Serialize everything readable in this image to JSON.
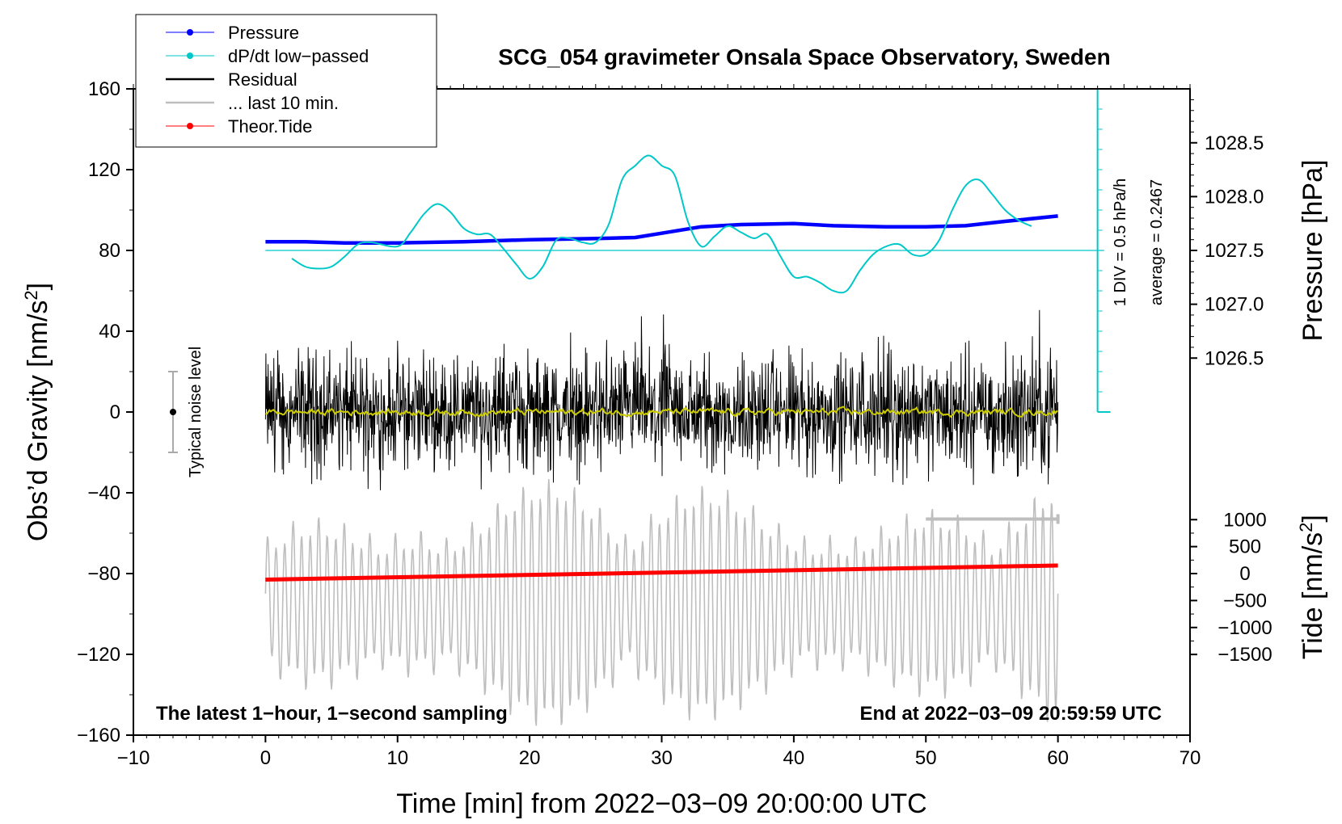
{
  "chart_data": {
    "type": "line",
    "title": "SCG_054 gravimeter Onsala Space Observatory, Sweden",
    "xlabel": "Time [min] from 2022−03−09 20:00:00 UTC",
    "ylabel_left": "Obs’d Gravity [nm/s²]",
    "ylabel_left_parts": [
      "Obs’d Gravity [nm/s",
      "2",
      "]"
    ],
    "ylabel_right_pressure": "Pressure [hPa]",
    "ylabel_right_tide": "Tide [nm/s²]",
    "ylabel_right_tide_parts": [
      "Tide [nm/s",
      "2",
      "]"
    ],
    "xlim": [
      -10,
      70
    ],
    "ylim": [
      -160,
      160
    ],
    "x_ticks": [
      -10,
      0,
      10,
      20,
      30,
      40,
      50,
      60,
      70
    ],
    "x_tick_labels": [
      "−10",
      "0",
      "10",
      "20",
      "30",
      "40",
      "50",
      "60",
      "70"
    ],
    "y_ticks": [
      -160,
      -120,
      -80,
      -40,
      0,
      40,
      80,
      120,
      160
    ],
    "y_tick_labels": [
      "−160",
      "−120",
      "−80",
      "−40",
      "0",
      "40",
      "80",
      "120",
      "160"
    ],
    "pressure_axis": {
      "ticks": [
        1026.5,
        1027.0,
        1027.5,
        1028.0,
        1028.5
      ],
      "tick_labels": [
        "1026.5",
        "1027.0",
        "1027.5",
        "1028.0",
        "1028.5"
      ],
      "ref_value": 1027.5,
      "ref_gravity": 80,
      "gravity_per_hpa": 53.3
    },
    "tide_axis": {
      "ticks": [
        -1500,
        -1000,
        -500,
        0,
        500,
        1000
      ],
      "tick_labels": [
        "−1500",
        "−1000",
        "−500",
        "0",
        "500",
        "1000"
      ],
      "ref_value": 0,
      "ref_gravity": -80,
      "gravity_per_nms2": 0.0267
    },
    "legend": [
      {
        "label": "Pressure",
        "color": "#0000ff",
        "marker": true
      },
      {
        "label": "dP/dt low−passed",
        "color": "#00c8c8",
        "marker": true
      },
      {
        "label": "Residual",
        "color": "#000000",
        "marker": false
      },
      {
        "label": "... last 10 min.",
        "color": "#bebebe",
        "marker": false
      },
      {
        "label": "Theor.Tide",
        "color": "#ff0000",
        "marker": true
      }
    ],
    "series": [
      {
        "name": "Pressure",
        "color": "#0000ff",
        "x": [
          0,
          3,
          6,
          10,
          15,
          20,
          25,
          28,
          30,
          33,
          36,
          40,
          43,
          47,
          50,
          53,
          56,
          60
        ],
        "y": [
          1027.58,
          1027.58,
          1027.57,
          1027.57,
          1027.58,
          1027.6,
          1027.61,
          1027.62,
          1027.66,
          1027.72,
          1027.74,
          1027.75,
          1027.73,
          1027.72,
          1027.72,
          1027.73,
          1027.77,
          1027.82
        ]
      },
      {
        "name": "dP/dt low-passed",
        "color": "#00c8c8",
        "x": [
          2,
          3,
          4,
          5,
          6,
          7,
          8,
          10,
          11,
          12,
          13,
          14,
          15,
          16,
          17,
          18,
          19,
          20,
          21,
          22,
          23,
          24,
          25,
          26,
          27,
          28,
          29,
          30,
          31,
          32,
          33,
          34,
          35,
          36,
          37,
          38,
          39,
          40,
          41,
          42,
          43,
          44,
          45,
          46,
          47,
          48,
          49,
          50,
          51,
          52,
          53,
          54,
          55,
          56,
          57,
          58
        ],
        "y": [
          76,
          72,
          71,
          72,
          77,
          83,
          84,
          82,
          89,
          98,
          103,
          99,
          91,
          88,
          88,
          81,
          73,
          66,
          72,
          85,
          86,
          84,
          84,
          93,
          115,
          122,
          127,
          122,
          117,
          94,
          82,
          87,
          92,
          89,
          86,
          88,
          77,
          67,
          67,
          64,
          60,
          60,
          70,
          78,
          82,
          83,
          78,
          78,
          85,
          100,
          112,
          115,
          108,
          100,
          95,
          92
        ]
      },
      {
        "name": "Residual",
        "color": "#000000",
        "x_start": 0,
        "x_end": 60,
        "envelope": 55
      },
      {
        "name": "Residual smoothed",
        "color": "#cccc00",
        "x_start": 0,
        "x_end": 60,
        "center": 0
      },
      {
        "name": "... last 10 min.",
        "color": "#bebebe",
        "x_start": 0,
        "x_end": 60,
        "center": -95,
        "envelope": 70
      },
      {
        "name": "Theor.Tide",
        "color": "#ff0000",
        "x": [
          0,
          60
        ],
        "y": [
          -83,
          -76
        ]
      }
    ],
    "dpdt_reference_value": 80,
    "dpdt_scale_label": "1 DIV = 0.5 hPa/h",
    "dpdt_average_label": "average = 0.2467",
    "noise_bar": {
      "x": -7,
      "y_center": 0,
      "y_low": -20,
      "y_high": 20,
      "label": "Typical noise level"
    },
    "last10_bar": {
      "x_start": 50,
      "x_end": 60,
      "y": -53
    },
    "annotation_left": "The latest 1−hour, 1−second sampling",
    "annotation_right": "End at 2022−03−09 20:59:59 UTC"
  }
}
